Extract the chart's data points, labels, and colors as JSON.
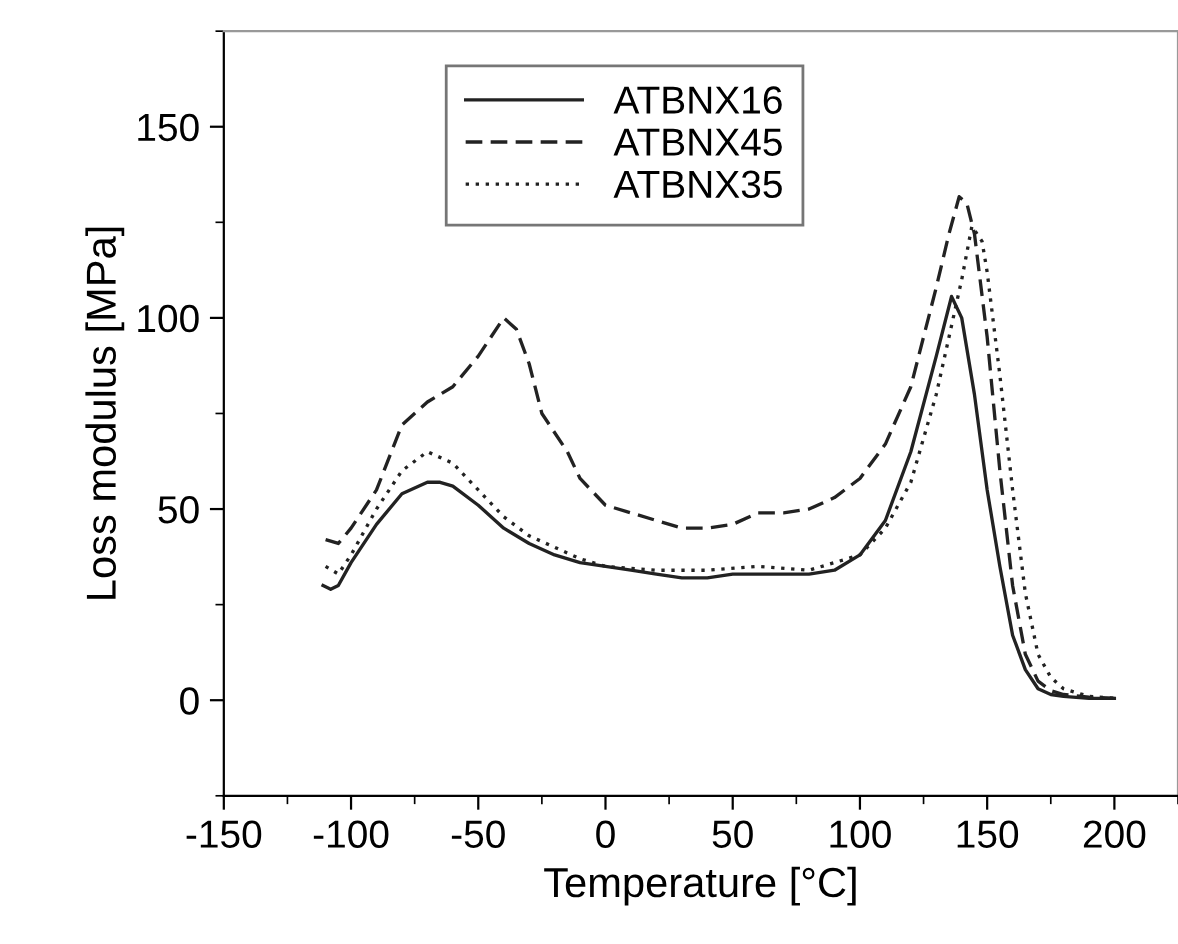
{
  "chart_data": {
    "type": "line",
    "xlabel": "Temperature [°C]",
    "ylabel": "Loss modulus [MPa]",
    "xlim": [
      -150,
      225
    ],
    "xticks": [
      -150,
      -100,
      -50,
      0,
      50,
      100,
      150,
      200
    ],
    "ylim": [
      -25,
      175
    ],
    "yticks": [
      0,
      50,
      100,
      150
    ],
    "grid": false,
    "legend": "top",
    "marker": "none",
    "series": [
      {
        "name": "ATBNX16",
        "color": "#222222",
        "line_style": "solid",
        "x": [
          -111,
          -108,
          -105,
          -100,
          -90,
          -80,
          -70,
          -65,
          -60,
          -50,
          -40,
          -30,
          -20,
          -10,
          0,
          10,
          20,
          30,
          40,
          50,
          60,
          70,
          80,
          90,
          100,
          110,
          120,
          130,
          136,
          140,
          145,
          150,
          155,
          160,
          165,
          170,
          175,
          180,
          190,
          200
        ],
        "values": [
          30,
          29,
          30,
          36,
          46,
          54,
          57,
          57,
          56,
          51,
          45,
          41,
          38,
          36,
          35,
          34,
          33,
          32,
          32,
          33,
          33,
          33,
          33,
          34,
          38,
          47,
          65,
          90,
          105.6,
          100,
          80,
          55,
          35,
          17,
          8,
          3,
          1.5,
          1,
          0.5,
          0.5
        ]
      },
      {
        "name": "ATBNX45",
        "color": "#222222",
        "line_style": "dashed",
        "x": [
          -110,
          -105,
          -100,
          -90,
          -80,
          -70,
          -60,
          -50,
          -45,
          -40,
          -35,
          -30,
          -25,
          -15,
          -10,
          0,
          10,
          20,
          30,
          40,
          50,
          60,
          70,
          80,
          90,
          100,
          110,
          120,
          130,
          135,
          139,
          142,
          145,
          150,
          155,
          160,
          165,
          170,
          175,
          180,
          190,
          200
        ],
        "values": [
          42,
          41,
          45,
          55,
          72,
          78,
          82,
          90,
          95,
          100,
          97,
          88,
          75,
          65,
          58,
          51,
          49,
          47,
          45,
          45,
          46,
          49,
          49,
          50,
          53,
          58,
          67,
          82,
          108,
          122,
          131.7,
          130,
          122,
          95,
          60,
          30,
          12,
          5,
          2.5,
          1.5,
          0.8,
          0.5
        ]
      },
      {
        "name": "ATBNX35",
        "color": "#222222",
        "line_style": "dotted",
        "x": [
          -110,
          -105,
          -100,
          -90,
          -80,
          -70,
          -60,
          -50,
          -40,
          -30,
          -20,
          -10,
          0,
          20,
          40,
          60,
          80,
          100,
          110,
          120,
          130,
          140,
          144,
          148,
          150,
          155,
          160,
          165,
          170,
          175,
          180,
          190,
          200
        ],
        "values": [
          35,
          33,
          38,
          50,
          60,
          65,
          62,
          55,
          48,
          43,
          40,
          37,
          35,
          34,
          34,
          35,
          34,
          38,
          45,
          57,
          80,
          110,
          124,
          120,
          112,
          85,
          55,
          28,
          12,
          6,
          3,
          1,
          0.5
        ]
      }
    ]
  }
}
